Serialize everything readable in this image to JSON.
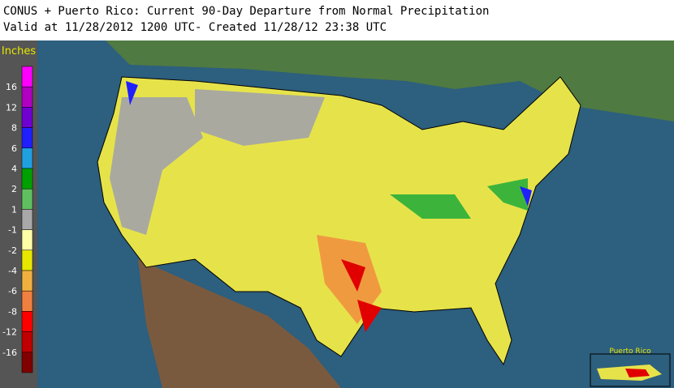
{
  "header": {
    "title": "CONUS + Puerto Rico: Current 90-Day Departure from Normal Precipitation",
    "subtitle": "Valid at 11/28/2012 1200 UTC- Created 11/28/12 23:38 UTC"
  },
  "legend": {
    "title": "Inches",
    "labels": [
      16,
      12,
      8,
      6,
      4,
      2,
      1,
      -1,
      -2,
      -4,
      -6,
      -8,
      -12,
      -16
    ]
  },
  "inset": {
    "label": "Puerto Rico"
  }
}
